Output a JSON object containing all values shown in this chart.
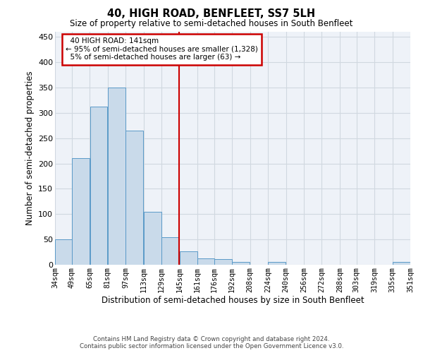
{
  "title": "40, HIGH ROAD, BENFLEET, SS7 5LH",
  "subtitle": "Size of property relative to semi-detached houses in South Benfleet",
  "xlabel": "Distribution of semi-detached houses by size in South Benfleet",
  "ylabel": "Number of semi-detached properties",
  "footer_line1": "Contains HM Land Registry data © Crown copyright and database right 2024.",
  "footer_line2": "Contains public sector information licensed under the Open Government Licence v3.0.",
  "annotation_line1": "40 HIGH ROAD: 141sqm",
  "annotation_line2": "← 95% of semi-detached houses are smaller (1,328)",
  "annotation_line3": "5% of semi-detached houses are larger (63) →",
  "bar_color": "#c9daea",
  "bar_edge_color": "#5a9ac8",
  "highlight_color": "#cc0000",
  "grid_color": "#d0d8e0",
  "bg_color": "#eef2f8",
  "bin_edges": [
    34,
    49,
    65,
    81,
    97,
    113,
    129,
    145,
    161,
    176,
    192,
    208,
    224,
    240,
    256,
    272,
    288,
    303,
    319,
    335,
    351
  ],
  "bin_labels": [
    "34sqm",
    "49sqm",
    "65sqm",
    "81sqm",
    "97sqm",
    "113sqm",
    "129sqm",
    "145sqm",
    "161sqm",
    "176sqm",
    "192sqm",
    "208sqm",
    "224sqm",
    "240sqm",
    "256sqm",
    "272sqm",
    "288sqm",
    "303sqm",
    "319sqm",
    "335sqm",
    "351sqm"
  ],
  "bar_heights": [
    50,
    210,
    312,
    350,
    265,
    104,
    55,
    27,
    12,
    11,
    5,
    0,
    5,
    0,
    0,
    0,
    0,
    0,
    0,
    5
  ],
  "ylim": [
    0,
    460
  ],
  "yticks": [
    0,
    50,
    100,
    150,
    200,
    250,
    300,
    350,
    400,
    450
  ],
  "vline_x": 145
}
